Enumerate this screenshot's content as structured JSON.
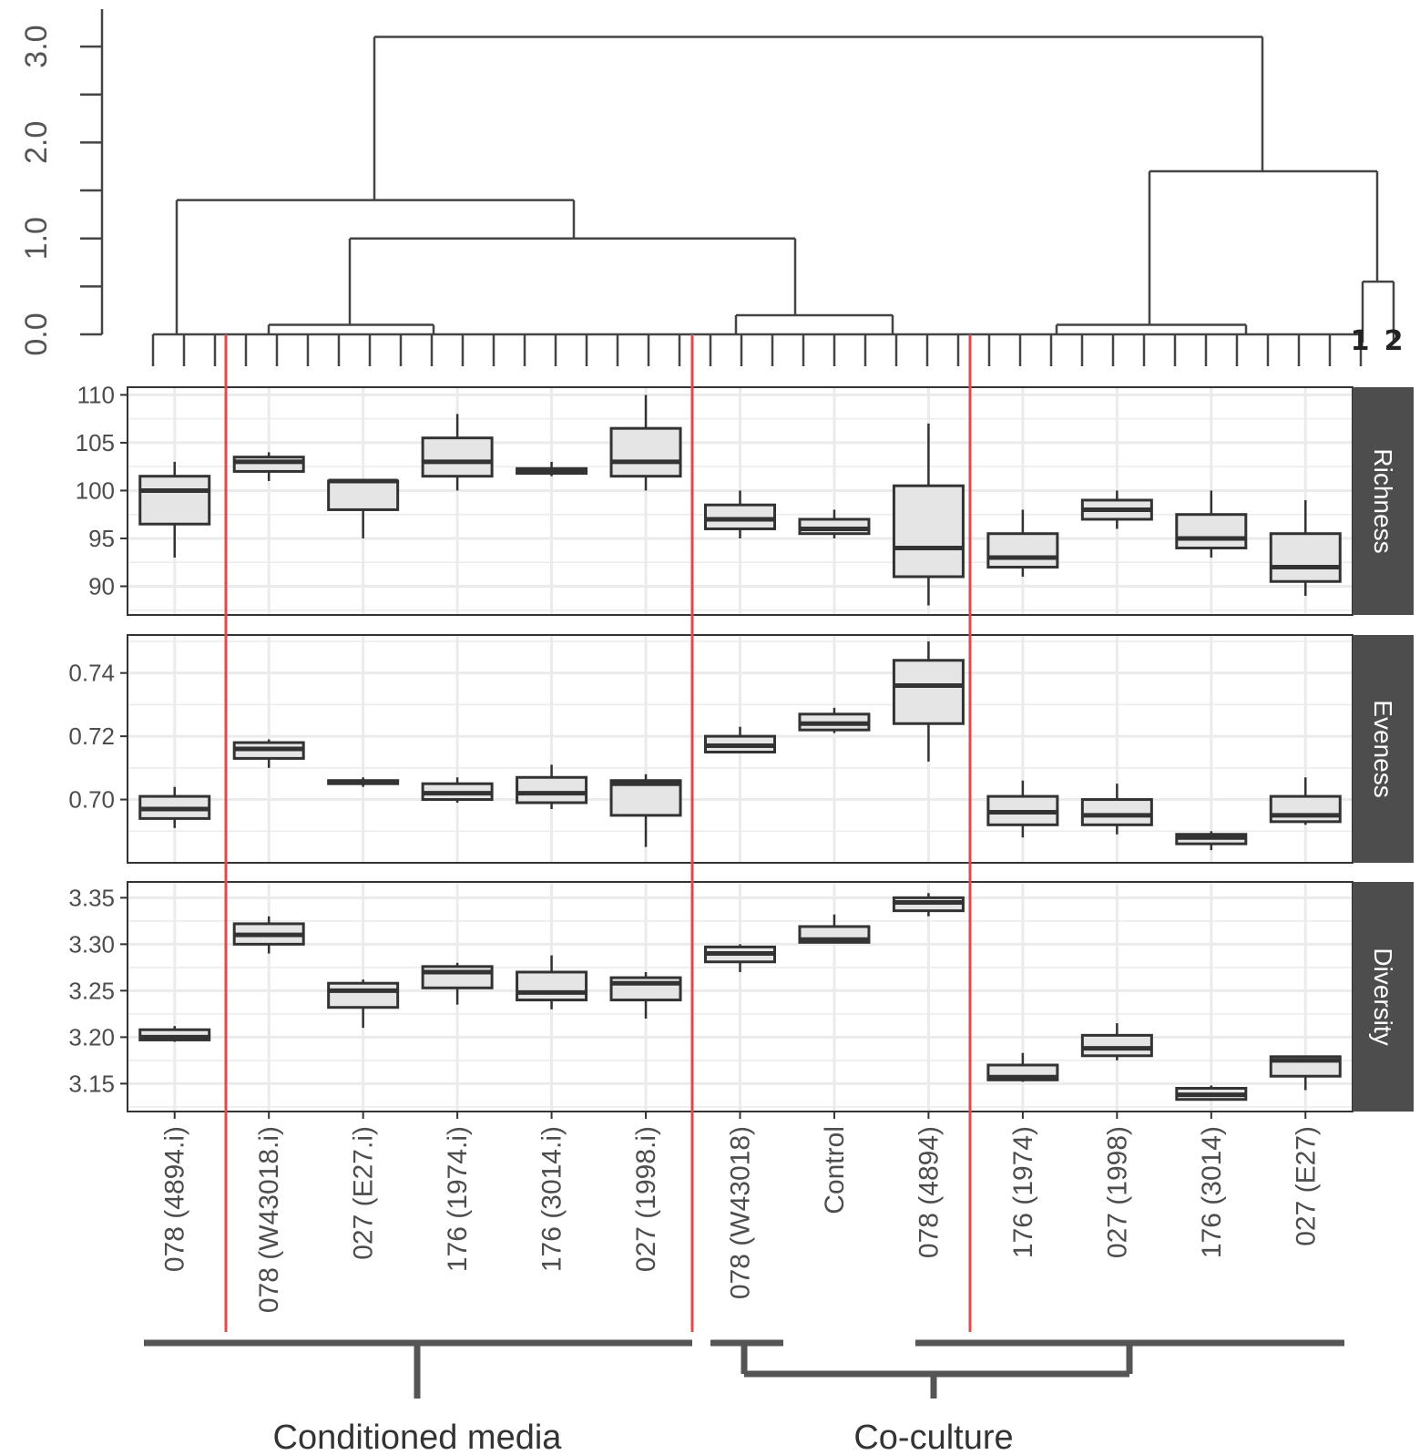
{
  "chart_data": {
    "type": "box",
    "categories": [
      "078 (4894.i)",
      "078 (W43018.i)",
      "027 (E27.i)",
      "176 (1974.i)",
      "176 (3014.i)",
      "027 (1998.i)",
      "078 (W43018)",
      "Control",
      "078 (4894)",
      "176 (1974)",
      "027 (1998)",
      "176 (3014)",
      "027 (E27)"
    ],
    "dendrogram": {
      "y_ticks": [
        "0.0",
        "1.0",
        "2.0",
        "3.0"
      ],
      "ylim": [
        0,
        3.2
      ],
      "root_height": 3.1,
      "left_cluster_height": 1.4,
      "right_cluster_height": 1.7,
      "subcluster_height": 1.0,
      "small_cluster_height": 0.55,
      "leaf_labels": [
        "1",
        "2"
      ]
    },
    "panels": [
      {
        "name": "Richness",
        "yticks": [
          "90",
          "95",
          "100",
          "105",
          "110"
        ],
        "ylim": [
          87,
          110.8
        ],
        "boxes": [
          {
            "min": 93,
            "q1": 96.5,
            "median": 100,
            "q3": 101.5,
            "max": 103
          },
          {
            "min": 101,
            "q1": 102,
            "median": 103,
            "q3": 103.5,
            "max": 104
          },
          {
            "min": 95,
            "q1": 98,
            "median": 101,
            "q3": 101,
            "max": 101
          },
          {
            "min": 100,
            "q1": 101.5,
            "median": 103,
            "q3": 105.5,
            "max": 108
          },
          {
            "min": 101.5,
            "q1": 101.8,
            "median": 102,
            "q3": 102.3,
            "max": 103
          },
          {
            "min": 100,
            "q1": 101.5,
            "median": 103,
            "q3": 106.5,
            "max": 110
          },
          {
            "min": 95,
            "q1": 96,
            "median": 97,
            "q3": 98.5,
            "max": 100
          },
          {
            "min": 95,
            "q1": 95.5,
            "median": 96,
            "q3": 97,
            "max": 98
          },
          {
            "min": 88,
            "q1": 91,
            "median": 94,
            "q3": 100.5,
            "max": 107
          },
          {
            "min": 91,
            "q1": 92,
            "median": 93,
            "q3": 95.5,
            "max": 98
          },
          {
            "min": 96,
            "q1": 97,
            "median": 98,
            "q3": 99,
            "max": 100
          },
          {
            "min": 93,
            "q1": 94,
            "median": 95,
            "q3": 97.5,
            "max": 100
          },
          {
            "min": 89,
            "q1": 90.5,
            "median": 92,
            "q3": 95.5,
            "max": 99
          }
        ]
      },
      {
        "name": "Eveness",
        "yticks": [
          "0.70",
          "0.72",
          "0.74"
        ],
        "ylim": [
          0.68,
          0.752
        ],
        "boxes": [
          {
            "min": 0.691,
            "q1": 0.694,
            "median": 0.697,
            "q3": 0.701,
            "max": 0.704
          },
          {
            "min": 0.71,
            "q1": 0.713,
            "median": 0.716,
            "q3": 0.718,
            "max": 0.719
          },
          {
            "min": 0.704,
            "q1": 0.705,
            "median": 0.7055,
            "q3": 0.706,
            "max": 0.707
          },
          {
            "min": 0.699,
            "q1": 0.7,
            "median": 0.702,
            "q3": 0.705,
            "max": 0.707
          },
          {
            "min": 0.697,
            "q1": 0.699,
            "median": 0.702,
            "q3": 0.707,
            "max": 0.711
          },
          {
            "min": 0.685,
            "q1": 0.695,
            "median": 0.705,
            "q3": 0.706,
            "max": 0.708
          },
          {
            "min": 0.715,
            "q1": 0.715,
            "median": 0.717,
            "q3": 0.72,
            "max": 0.723
          },
          {
            "min": 0.721,
            "q1": 0.722,
            "median": 0.724,
            "q3": 0.727,
            "max": 0.729
          },
          {
            "min": 0.712,
            "q1": 0.724,
            "median": 0.736,
            "q3": 0.744,
            "max": 0.75
          },
          {
            "min": 0.688,
            "q1": 0.692,
            "median": 0.696,
            "q3": 0.701,
            "max": 0.706
          },
          {
            "min": 0.689,
            "q1": 0.692,
            "median": 0.695,
            "q3": 0.7,
            "max": 0.705
          },
          {
            "min": 0.684,
            "q1": 0.686,
            "median": 0.688,
            "q3": 0.689,
            "max": 0.69
          },
          {
            "min": 0.692,
            "q1": 0.693,
            "median": 0.695,
            "q3": 0.701,
            "max": 0.707
          }
        ]
      },
      {
        "name": "Diversity",
        "yticks": [
          "3.15",
          "3.20",
          "3.25",
          "3.30",
          "3.35"
        ],
        "ylim": [
          3.12,
          3.367
        ],
        "boxes": [
          {
            "min": 3.195,
            "q1": 3.197,
            "median": 3.2,
            "q3": 3.208,
            "max": 3.212
          },
          {
            "min": 3.29,
            "q1": 3.3,
            "median": 3.31,
            "q3": 3.322,
            "max": 3.33
          },
          {
            "min": 3.21,
            "q1": 3.232,
            "median": 3.25,
            "q3": 3.258,
            "max": 3.262
          },
          {
            "min": 3.235,
            "q1": 3.253,
            "median": 3.27,
            "q3": 3.276,
            "max": 3.28
          },
          {
            "min": 3.23,
            "q1": 3.24,
            "median": 3.248,
            "q3": 3.27,
            "max": 3.288
          },
          {
            "min": 3.22,
            "q1": 3.24,
            "median": 3.258,
            "q3": 3.264,
            "max": 3.27
          },
          {
            "min": 3.27,
            "q1": 3.281,
            "median": 3.29,
            "q3": 3.297,
            "max": 3.3
          },
          {
            "min": 3.301,
            "q1": 3.302,
            "median": 3.305,
            "q3": 3.319,
            "max": 3.332
          },
          {
            "min": 3.33,
            "q1": 3.336,
            "median": 3.345,
            "q3": 3.35,
            "max": 3.355
          },
          {
            "min": 3.152,
            "q1": 3.154,
            "median": 3.157,
            "q3": 3.17,
            "max": 3.183
          },
          {
            "min": 3.175,
            "q1": 3.18,
            "median": 3.188,
            "q3": 3.202,
            "max": 3.215
          },
          {
            "min": 3.132,
            "q1": 3.133,
            "median": 3.138,
            "q3": 3.145,
            "max": 3.148
          },
          {
            "min": 3.143,
            "q1": 3.158,
            "median": 3.175,
            "q3": 3.179,
            "max": 3.18
          }
        ]
      }
    ],
    "groups": [
      {
        "label": "Conditioned media"
      },
      {
        "label": "Co-culture"
      }
    ],
    "colors": {
      "box_fill": "#e5e5e5",
      "box_stroke": "#333333",
      "separator": "#e8474a",
      "strip_bg": "#4d4d4d",
      "grid": "#ebebeb",
      "bracket": "#555555"
    },
    "grid": true
  }
}
